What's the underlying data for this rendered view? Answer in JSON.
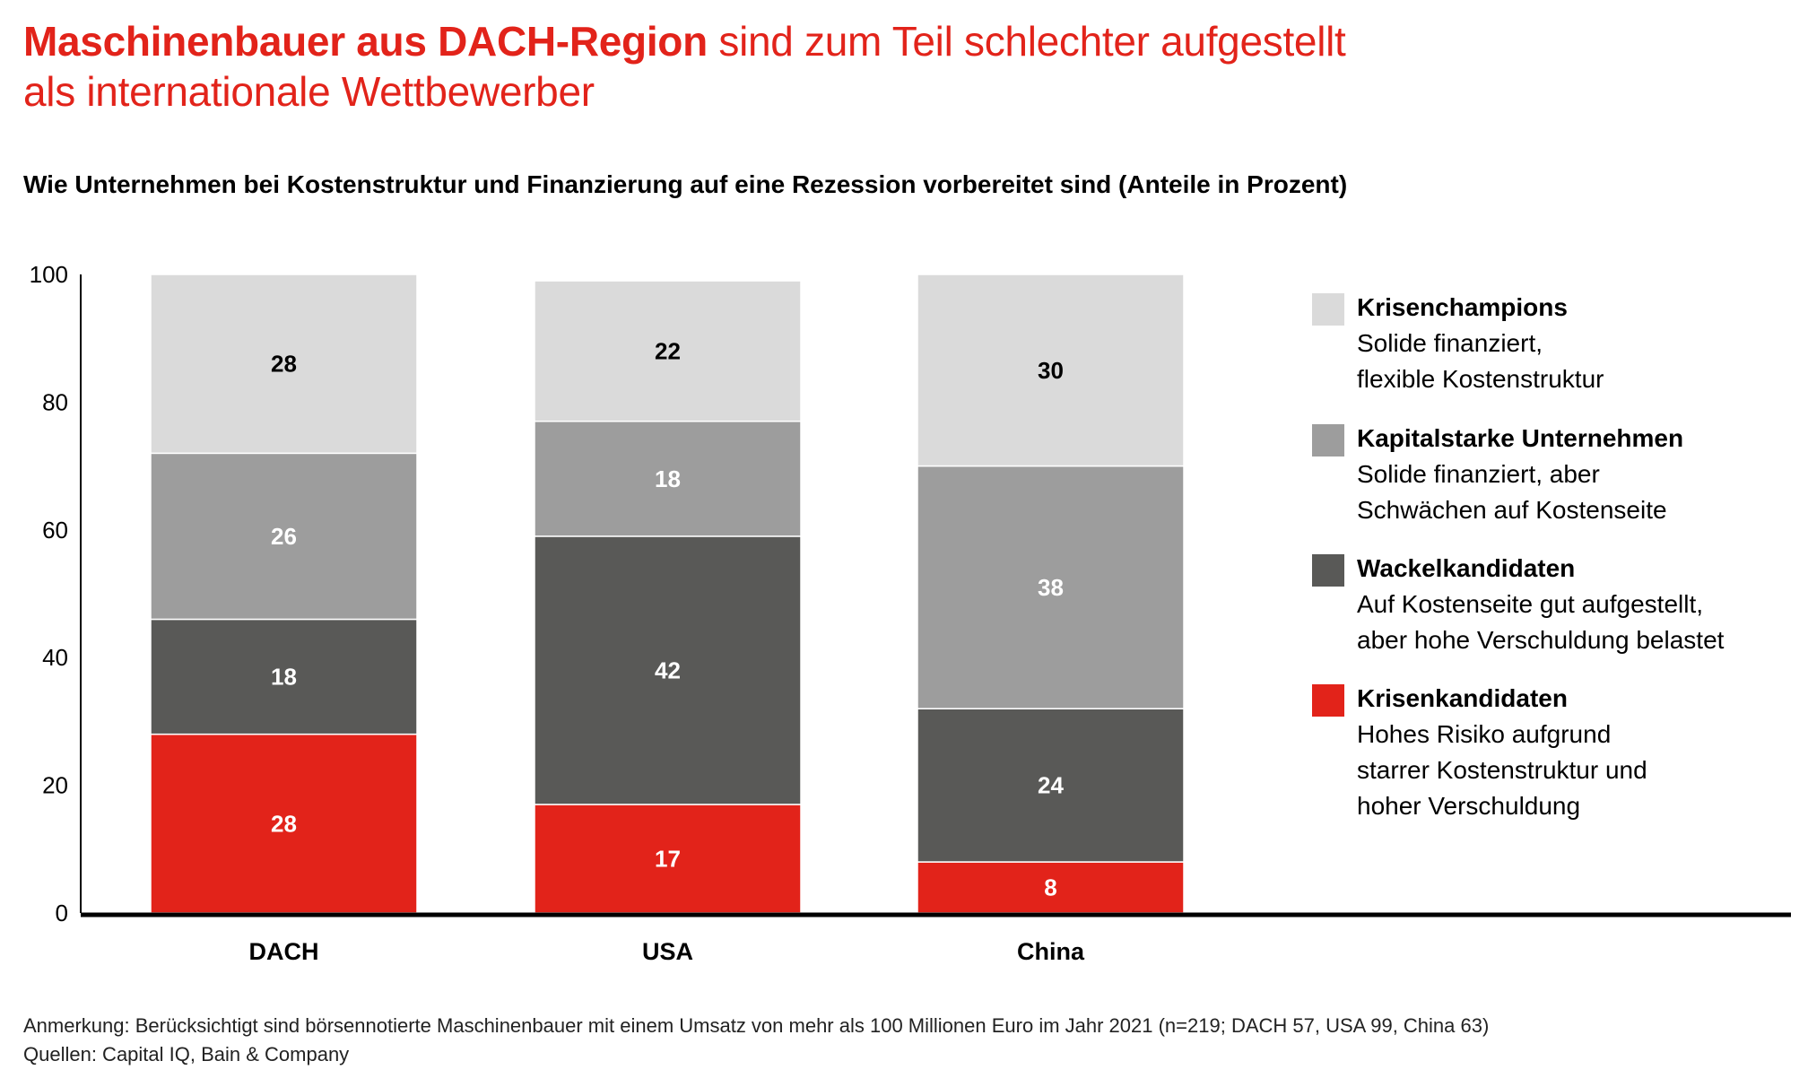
{
  "title": {
    "bold": "Maschinenbauer aus DACH-Region",
    "regular": " sind zum Teil schlechter aufgestellt",
    "line2": "als internationale Wettbewerber"
  },
  "colors": {
    "accent": "#e2231a"
  },
  "chart_data": {
    "type": "bar",
    "stacked": true,
    "title": "Wie Unternehmen bei Kostenstruktur und Finanzierung auf eine Rezession vorbereitet sind (Anteile in Prozent)",
    "categories": [
      "DACH",
      "USA",
      "China"
    ],
    "ylim": [
      0,
      100
    ],
    "yticks": [
      "0",
      "20",
      "40",
      "60",
      "80",
      "100"
    ],
    "grid": false,
    "legend_position": "right",
    "series": [
      {
        "name": "Krisenkandidaten",
        "description": [
          "Hohes Risiko aufgrund",
          "starrer Kostenstruktur und",
          "hoher Verschuldung"
        ],
        "color": "#e2231a",
        "label_color": "#ffffff",
        "values": [
          28,
          17,
          8
        ]
      },
      {
        "name": "Wackelkandidaten",
        "description": [
          "Auf Kostenseite gut aufgestellt,",
          "aber hohe Verschuldung belastet"
        ],
        "color": "#595957",
        "label_color": "#ffffff",
        "values": [
          18,
          42,
          24
        ]
      },
      {
        "name": "Kapitalstarke Unternehmen",
        "description": [
          "Solide finanziert, aber",
          "Schwächen auf Kostenseite"
        ],
        "color": "#9d9d9d",
        "label_color": "#ffffff",
        "values": [
          26,
          18,
          38
        ]
      },
      {
        "name": "Krisenchampions",
        "description": [
          "Solide finanziert,",
          "flexible Kostenstruktur"
        ],
        "color": "#dadada",
        "label_color": "#000000",
        "values": [
          28,
          22,
          30
        ]
      }
    ]
  },
  "notes": {
    "remark": "Anmerkung: Berücksichtigt sind börsennotierte Maschinenbauer mit einem Umsatz von mehr als 100 Millionen Euro im Jahr 2021 (n=219; DACH 57, USA 99, China 63)",
    "sources": "Quellen: Capital IQ, Bain & Company"
  }
}
